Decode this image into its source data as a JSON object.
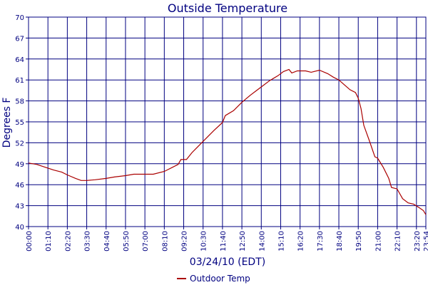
{
  "chart_data": {
    "type": "line",
    "title": "Outside Temperature",
    "xlabel": "03/24/10 (EDT)",
    "ylabel": "Degrees F",
    "xlim": [
      "00:00",
      "23:54"
    ],
    "ylim": [
      40,
      70
    ],
    "yticks": [
      40,
      43,
      46,
      49,
      52,
      55,
      58,
      61,
      64,
      67,
      70
    ],
    "xticks": [
      "00:00",
      "01:10",
      "02:20",
      "03:30",
      "04:40",
      "05:50",
      "07:00",
      "08:10",
      "09:20",
      "10:30",
      "11:40",
      "12:50",
      "14:00",
      "15:10",
      "16:20",
      "17:30",
      "18:40",
      "19:50",
      "21:00",
      "22:10",
      "23:20",
      "23:54"
    ],
    "grid": true,
    "legend_position": "bottom-center",
    "series": [
      {
        "name": "Outdoor Temp",
        "color": "#aa0000",
        "points": [
          [
            "00:00",
            49.1
          ],
          [
            "00:30",
            48.9
          ],
          [
            "01:00",
            48.5
          ],
          [
            "01:30",
            48.1
          ],
          [
            "02:00",
            47.8
          ],
          [
            "02:20",
            47.4
          ],
          [
            "02:50",
            46.9
          ],
          [
            "03:10",
            46.6
          ],
          [
            "03:30",
            46.6
          ],
          [
            "04:00",
            46.7
          ],
          [
            "04:40",
            46.9
          ],
          [
            "05:10",
            47.1
          ],
          [
            "05:50",
            47.3
          ],
          [
            "06:20",
            47.5
          ],
          [
            "07:00",
            47.5
          ],
          [
            "07:30",
            47.5
          ],
          [
            "08:10",
            47.9
          ],
          [
            "08:40",
            48.5
          ],
          [
            "09:00",
            48.9
          ],
          [
            "09:10",
            49.6
          ],
          [
            "09:30",
            49.6
          ],
          [
            "09:50",
            50.6
          ],
          [
            "10:10",
            51.4
          ],
          [
            "10:30",
            52.2
          ],
          [
            "10:50",
            53.0
          ],
          [
            "11:10",
            53.8
          ],
          [
            "11:40",
            54.9
          ],
          [
            "11:50",
            55.9
          ],
          [
            "12:20",
            56.6
          ],
          [
            "12:50",
            57.8
          ],
          [
            "13:20",
            58.8
          ],
          [
            "13:40",
            59.4
          ],
          [
            "14:00",
            60.0
          ],
          [
            "14:30",
            60.9
          ],
          [
            "15:00",
            61.6
          ],
          [
            "15:20",
            62.2
          ],
          [
            "15:40",
            62.5
          ],
          [
            "15:50",
            62.0
          ],
          [
            "16:10",
            62.3
          ],
          [
            "16:40",
            62.3
          ],
          [
            "17:00",
            62.1
          ],
          [
            "17:30",
            62.4
          ],
          [
            "18:00",
            61.9
          ],
          [
            "18:20",
            61.4
          ],
          [
            "18:40",
            61.0
          ],
          [
            "19:00",
            60.3
          ],
          [
            "19:20",
            59.6
          ],
          [
            "19:40",
            59.2
          ],
          [
            "19:50",
            58.4
          ],
          [
            "20:00",
            56.9
          ],
          [
            "20:10",
            54.5
          ],
          [
            "20:30",
            52.3
          ],
          [
            "20:50",
            50.0
          ],
          [
            "21:00",
            49.8
          ],
          [
            "21:20",
            48.5
          ],
          [
            "21:40",
            46.9
          ],
          [
            "21:50",
            45.6
          ],
          [
            "22:10",
            45.4
          ],
          [
            "22:30",
            44.0
          ],
          [
            "22:50",
            43.4
          ],
          [
            "23:10",
            43.2
          ],
          [
            "23:30",
            42.7
          ],
          [
            "23:45",
            42.3
          ],
          [
            "23:54",
            41.7
          ]
        ]
      }
    ]
  }
}
